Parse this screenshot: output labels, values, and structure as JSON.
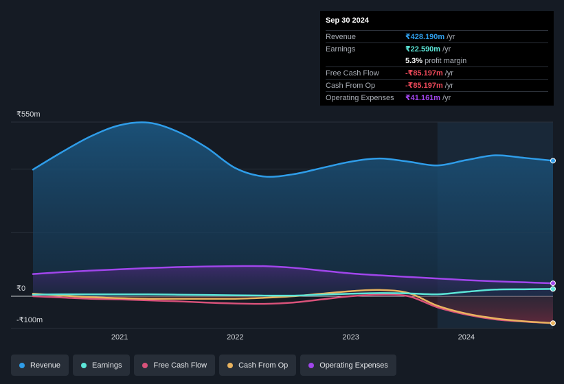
{
  "tooltip": {
    "date": "Sep 30 2024",
    "rows": [
      {
        "label": "Revenue",
        "value": "₹428.190m",
        "unit": "/yr",
        "color": "#2f9de9"
      },
      {
        "label": "Earnings",
        "value": "₹22.590m",
        "unit": "/yr",
        "color": "#5ce6d8"
      },
      {
        "label": "",
        "value": "5.3%",
        "unit": "profit margin",
        "color": "#ffffff"
      },
      {
        "label": "Free Cash Flow",
        "value": "-₹85.197m",
        "unit": "/yr",
        "color": "#ef4a5a"
      },
      {
        "label": "Cash From Op",
        "value": "-₹85.197m",
        "unit": "/yr",
        "color": "#ef4a5a"
      },
      {
        "label": "Operating Expenses",
        "value": "₹41.161m",
        "unit": "/yr",
        "color": "#a146ec"
      }
    ]
  },
  "legend": [
    {
      "label": "Revenue",
      "color": "#2f9de9"
    },
    {
      "label": "Earnings",
      "color": "#5ce6d8"
    },
    {
      "label": "Free Cash Flow",
      "color": "#d9527a"
    },
    {
      "label": "Cash From Op",
      "color": "#e9b35f"
    },
    {
      "label": "Operating Expenses",
      "color": "#a146ec"
    }
  ],
  "chart_data": {
    "type": "line",
    "y_tick_labels": [
      "₹550m",
      "₹0",
      "-₹100m"
    ],
    "x_tick_labels": [
      "2021",
      "2022",
      "2023",
      "2024"
    ],
    "x_tick_years": [
      2021,
      2022,
      2023,
      2024
    ],
    "ylim": [
      -100,
      550
    ],
    "xlim": [
      2020.25,
      2024.75
    ],
    "forecast_start": 2023.75,
    "grid": true,
    "legend_position": "bottom",
    "series": [
      {
        "name": "Revenue",
        "color": "#2f9de9",
        "x": [
          2020.25,
          2020.5,
          2020.75,
          2021.0,
          2021.25,
          2021.5,
          2021.75,
          2022.0,
          2022.25,
          2022.5,
          2022.75,
          2023.0,
          2023.25,
          2023.5,
          2023.75,
          2024.0,
          2024.25,
          2024.5,
          2024.75
        ],
        "values": [
          400,
          455,
          505,
          540,
          548,
          520,
          470,
          405,
          378,
          385,
          405,
          425,
          435,
          425,
          413,
          430,
          445,
          437,
          428
        ]
      },
      {
        "name": "Earnings",
        "color": "#5ce6d8",
        "x": [
          2020.25,
          2020.5,
          2020.75,
          2021.0,
          2021.25,
          2021.5,
          2021.75,
          2022.0,
          2022.25,
          2022.5,
          2022.75,
          2023.0,
          2023.25,
          2023.5,
          2023.75,
          2024.0,
          2024.25,
          2024.5,
          2024.75
        ],
        "values": [
          5,
          6,
          6,
          6,
          6,
          5,
          4,
          3,
          2,
          2,
          5,
          8,
          10,
          9,
          6,
          14,
          21,
          22,
          23
        ]
      },
      {
        "name": "Free Cash Flow",
        "color": "#d9527a",
        "x": [
          2020.25,
          2020.5,
          2020.75,
          2021.0,
          2021.25,
          2021.5,
          2021.75,
          2022.0,
          2022.25,
          2022.5,
          2022.75,
          2023.0,
          2023.25,
          2023.5,
          2023.75,
          2024.0,
          2024.25,
          2024.5,
          2024.75
        ],
        "values": [
          0,
          -4,
          -8,
          -10,
          -13,
          -16,
          -20,
          -23,
          -24,
          -20,
          -10,
          0,
          5,
          0,
          -35,
          -58,
          -73,
          -80,
          -85
        ]
      },
      {
        "name": "Cash From Op",
        "color": "#e9b35f",
        "x": [
          2020.25,
          2020.5,
          2020.75,
          2021.0,
          2021.25,
          2021.5,
          2021.75,
          2022.0,
          2022.25,
          2022.5,
          2022.75,
          2023.0,
          2023.25,
          2023.5,
          2023.75,
          2024.0,
          2024.25,
          2024.5,
          2024.75
        ],
        "values": [
          8,
          2,
          -3,
          -6,
          -8,
          -8,
          -8,
          -8,
          -5,
          0,
          8,
          16,
          20,
          10,
          -30,
          -55,
          -70,
          -79,
          -85
        ]
      },
      {
        "name": "Operating Expenses",
        "color": "#a146ec",
        "x": [
          2020.25,
          2020.5,
          2020.75,
          2021.0,
          2021.25,
          2021.5,
          2021.75,
          2022.0,
          2022.25,
          2022.5,
          2022.75,
          2023.0,
          2023.25,
          2023.5,
          2023.75,
          2024.0,
          2024.25,
          2024.5,
          2024.75
        ],
        "values": [
          70,
          76,
          81,
          85,
          89,
          92,
          94,
          95,
          95,
          90,
          81,
          72,
          66,
          61,
          56,
          51,
          47,
          44,
          41
        ]
      }
    ]
  }
}
